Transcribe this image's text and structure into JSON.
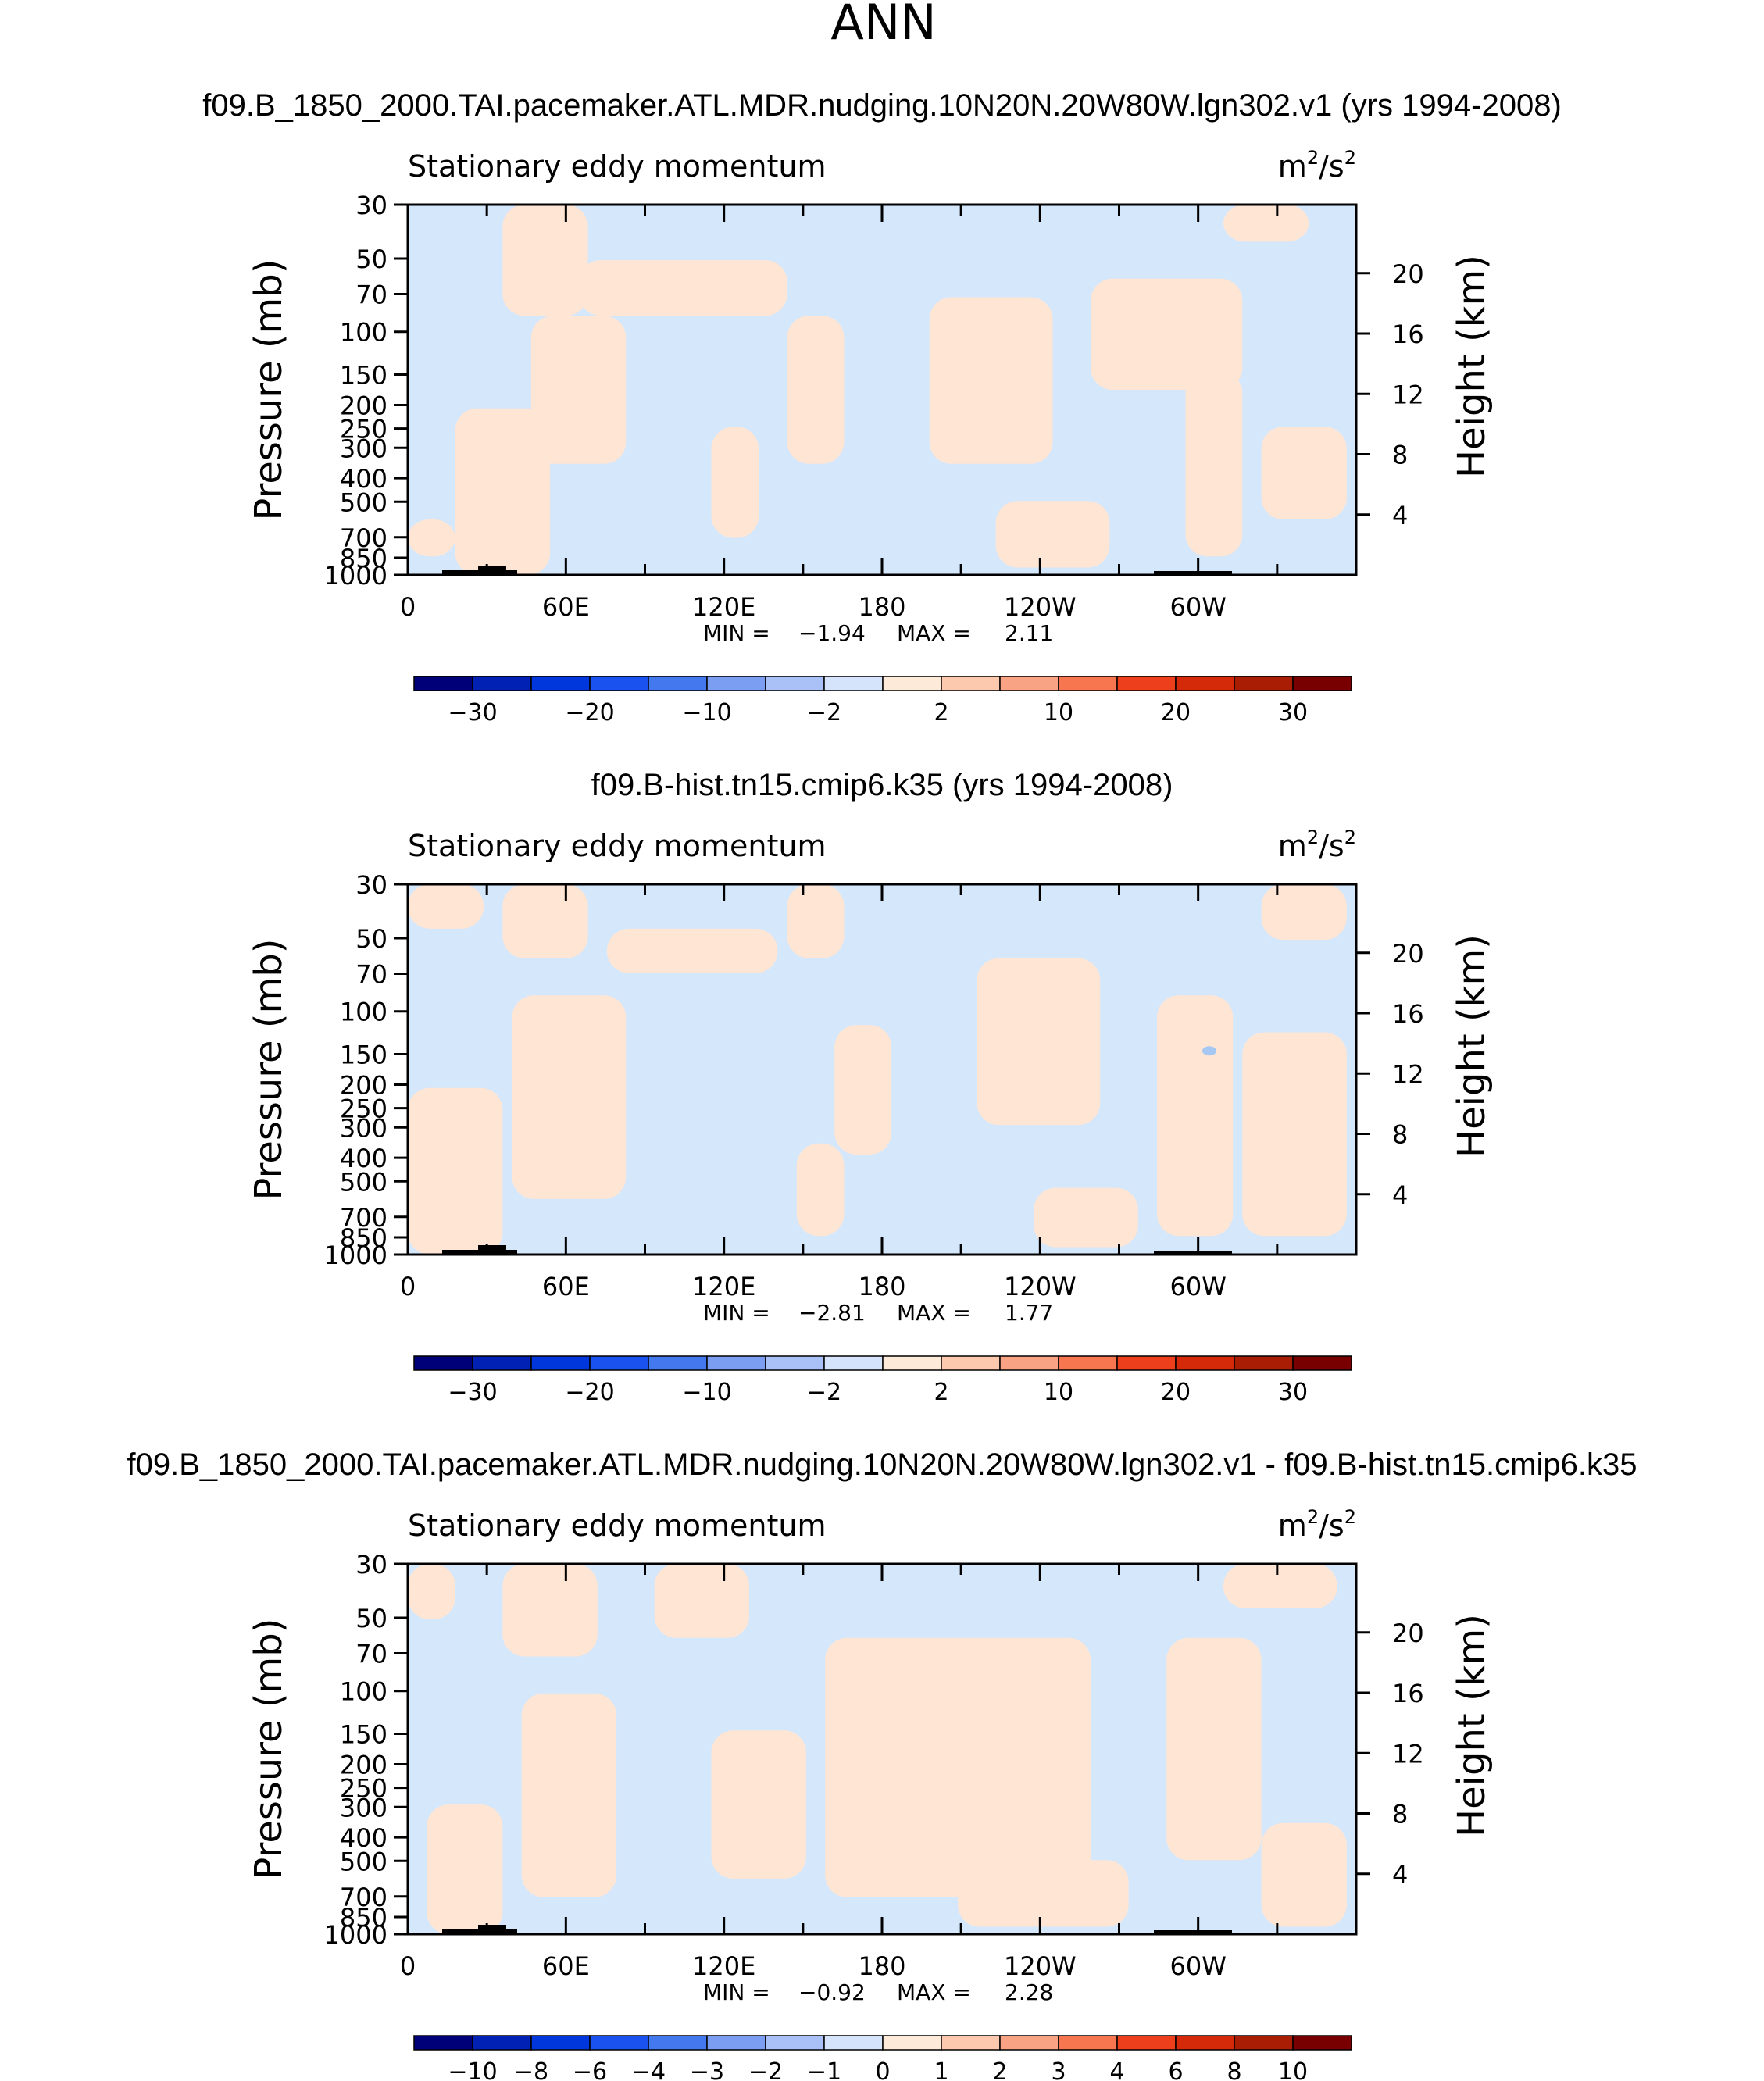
{
  "page": {
    "season": "ANN"
  },
  "colors": {
    "pos_fill": "#ffe5d4",
    "neg_fill": "#d4e7fb",
    "neg_blob": "#a8c8f4",
    "terrain": "#000000",
    "frame": "#000000",
    "scale_main": [
      "#000079",
      "#0021b4",
      "#0037dd",
      "#1a52ef",
      "#4478ee",
      "#7b9df2",
      "#a9c1f6",
      "#d5e4fb",
      "#feead9",
      "#fcc9af",
      "#f8a383",
      "#f7754f",
      "#ee3f1d",
      "#d52a0a",
      "#a91d05",
      "#790000"
    ]
  },
  "chart_data": [
    {
      "type": "contour",
      "title": "f09.B_1850_2000.TAI.pacemaker.ATL.MDR.nudging.10N20N.20W80W.lgn302.v1 (yrs 1994-2008)",
      "left_label": "Stationary eddy momentum",
      "units_base": "m",
      "units_exp1": "2",
      "units_mid": "/s",
      "units_exp2": "2",
      "ylabel": "Pressure (mb)",
      "ylabel_right": "Height (km)",
      "pressure_ticks": [
        "30",
        "50",
        "70",
        "100",
        "150",
        "200",
        "250",
        "300",
        "400",
        "500",
        "700",
        "850",
        "1000"
      ],
      "pressure_values": [
        30,
        50,
        70,
        100,
        150,
        200,
        250,
        300,
        400,
        500,
        700,
        850,
        1000
      ],
      "height_ticks": [
        "20",
        "16",
        "12",
        "8",
        "4"
      ],
      "height_values": [
        20,
        16,
        12,
        8,
        4
      ],
      "lon_ticks": [
        "0",
        "60E",
        "120E",
        "180",
        "120W",
        "60W"
      ],
      "lon_values": [
        0,
        60,
        120,
        180,
        240,
        300
      ],
      "min_label": "MIN =",
      "min_value": "−1.94",
      "max_label": "MAX =",
      "max_value": "2.11",
      "scale_levels": [
        -35,
        -30,
        -25,
        -20,
        -15,
        -10,
        -5,
        -2,
        0,
        2,
        5,
        10,
        15,
        20,
        25,
        30,
        35
      ],
      "scale_labels": [
        "−30",
        "−20",
        "−10",
        "−2",
        "2",
        "10",
        "20",
        "30"
      ],
      "scale_label_levels": [
        -30,
        -20,
        -10,
        -2,
        2,
        10,
        20,
        30
      ]
    },
    {
      "type": "contour",
      "title": "f09.B-hist.tn15.cmip6.k35 (yrs 1994-2008)",
      "left_label": "Stationary eddy momentum",
      "units_base": "m",
      "units_exp1": "2",
      "units_mid": "/s",
      "units_exp2": "2",
      "ylabel": "Pressure (mb)",
      "ylabel_right": "Height (km)",
      "pressure_ticks": [
        "30",
        "50",
        "70",
        "100",
        "150",
        "200",
        "250",
        "300",
        "400",
        "500",
        "700",
        "850",
        "1000"
      ],
      "pressure_values": [
        30,
        50,
        70,
        100,
        150,
        200,
        250,
        300,
        400,
        500,
        700,
        850,
        1000
      ],
      "height_ticks": [
        "20",
        "16",
        "12",
        "8",
        "4"
      ],
      "height_values": [
        20,
        16,
        12,
        8,
        4
      ],
      "lon_ticks": [
        "0",
        "60E",
        "120E",
        "180",
        "120W",
        "60W"
      ],
      "lon_values": [
        0,
        60,
        120,
        180,
        240,
        300
      ],
      "min_label": "MIN =",
      "min_value": "−2.81",
      "max_label": "MAX =",
      "max_value": "1.77",
      "scale_levels": [
        -35,
        -30,
        -25,
        -20,
        -15,
        -10,
        -5,
        -2,
        0,
        2,
        5,
        10,
        15,
        20,
        25,
        30,
        35
      ],
      "scale_labels": [
        "−30",
        "−20",
        "−10",
        "−2",
        "2",
        "10",
        "20",
        "30"
      ],
      "scale_label_levels": [
        -30,
        -20,
        -10,
        -2,
        2,
        10,
        20,
        30
      ]
    },
    {
      "type": "contour",
      "title": "f09.B_1850_2000.TAI.pacemaker.ATL.MDR.nudging.10N20N.20W80W.lgn302.v1 - f09.B-hist.tn15.cmip6.k35",
      "left_label": "Stationary eddy momentum",
      "units_base": "m",
      "units_exp1": "2",
      "units_mid": "/s",
      "units_exp2": "2",
      "ylabel": "Pressure (mb)",
      "ylabel_right": "Height (km)",
      "pressure_ticks": [
        "30",
        "50",
        "70",
        "100",
        "150",
        "200",
        "250",
        "300",
        "400",
        "500",
        "700",
        "850",
        "1000"
      ],
      "pressure_values": [
        30,
        50,
        70,
        100,
        150,
        200,
        250,
        300,
        400,
        500,
        700,
        850,
        1000
      ],
      "height_ticks": [
        "20",
        "16",
        "12",
        "8",
        "4"
      ],
      "height_values": [
        20,
        16,
        12,
        8,
        4
      ],
      "lon_ticks": [
        "0",
        "60E",
        "120E",
        "180",
        "120W",
        "60W"
      ],
      "lon_values": [
        0,
        60,
        120,
        180,
        240,
        300
      ],
      "min_label": "MIN =",
      "min_value": "−0.92",
      "max_label": "MAX =",
      "max_value": "2.28",
      "scale_levels": [
        -12,
        -10,
        -8,
        -6,
        -4,
        -3,
        -2,
        -1,
        0,
        1,
        2,
        3,
        4,
        6,
        8,
        10,
        12
      ],
      "scale_labels": [
        "−10",
        "−8",
        "−6",
        "−4",
        "−3",
        "−2",
        "−1",
        "0",
        "1",
        "2",
        "3",
        "4",
        "6",
        "8",
        "10"
      ],
      "scale_label_levels": [
        -10,
        -8,
        -6,
        -4,
        -3,
        -2,
        -1,
        0,
        1,
        2,
        3,
        4,
        6,
        8,
        10
      ]
    }
  ]
}
